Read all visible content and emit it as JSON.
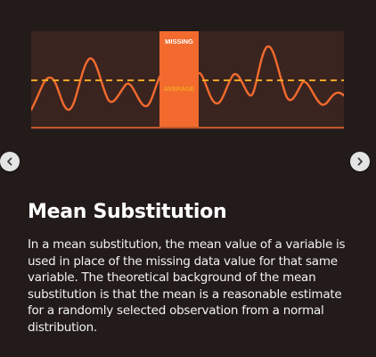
{
  "colors": {
    "background": "#221b1a",
    "figure_background": "#3a2420",
    "accent_orange": "#f26a2e",
    "average_line": "#f5a623",
    "text": "#ffffff"
  },
  "figure": {
    "missing_label": "MISSING",
    "average_label": "AVERAGE"
  },
  "carousel": {
    "prev_icon": "chevron-left-icon",
    "next_icon": "chevron-right-icon"
  },
  "article": {
    "title": "Mean Substitution",
    "body": "In a mean substitution, the mean value of a variable is used in place of the missing data value for that same variable. The theoretical background of the mean substitution is that the mean is a reasonable estimate for a randomly selected observation from a normal distribution."
  }
}
